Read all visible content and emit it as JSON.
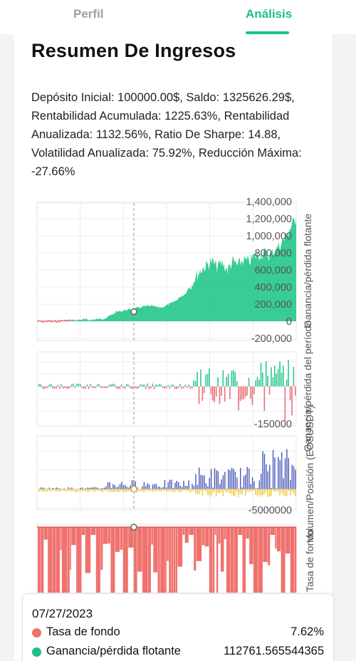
{
  "tabs": [
    {
      "label": "Perfil",
      "active": false
    },
    {
      "label": "Análisis",
      "active": true
    }
  ],
  "page_title": "Resumen De Ingresos",
  "summary": "Depósito Inicial: 100000.00$, Saldo: 1325626.29$, Rentabilidad Acumulada: 1225.63%, Rentabilidad Anualizada: 1132.56%, Ratio De Sharpe: 14.88, Volatilidad Anualizada: 75.92%, Reducción Máxima: -27.66%",
  "colors": {
    "accent": "#1dbf8e",
    "profit": "#2ec98f",
    "loss": "#e8707a",
    "position": "#4a57b8",
    "volume": "#f3d04a",
    "funding": "#f0726f"
  },
  "chart_data": [
    {
      "type": "area",
      "ylabel": "Ganancia/pérdida flotante",
      "yticks": [
        "1,400,000",
        "1,200,000",
        "1,000,000",
        "800,000",
        "600,000",
        "400,000",
        "200,000",
        "0",
        "-200,000"
      ],
      "ylim": [
        -200000,
        1400000
      ],
      "grid": true,
      "y": [
        0,
        -5000,
        3000,
        -4000,
        2000,
        8000,
        15000,
        12000,
        18000,
        20000,
        16000,
        22000,
        25000,
        40000,
        70000,
        110000,
        120000,
        135000,
        140000,
        155000,
        170000,
        180000,
        175000,
        160000,
        170000,
        200000,
        230000,
        280000,
        320000,
        420000,
        520000,
        600000,
        650000,
        700000,
        640000,
        680000,
        600000,
        700000,
        650000,
        720000,
        690000,
        760000,
        780000,
        800000,
        760000,
        830000,
        900000,
        980000,
        1100000,
        1200000
      ]
    },
    {
      "type": "bar",
      "ylabel": "Ganancia/pérdida del período",
      "yticks": [
        "-150000"
      ],
      "ylim": [
        -160000,
        140000
      ]
    },
    {
      "type": "bar",
      "ylabel": "Volumen/Posición (EOSUSDT)",
      "yticks": [
        "-5000000"
      ],
      "ylim": [
        -5500000,
        14000000
      ]
    },
    {
      "type": "bar",
      "ylabel": "Tasa de fondo",
      "yticks": []
    }
  ],
  "crosshair": {
    "date": "07/27/2023",
    "series": [
      {
        "label": "Tasa de fondo",
        "value": "7.62%",
        "color": "#ef7067"
      },
      {
        "label": "Ganancia/pérdida flotante",
        "value": "112761.565544365",
        "color": "#1dbf8e"
      }
    ]
  }
}
